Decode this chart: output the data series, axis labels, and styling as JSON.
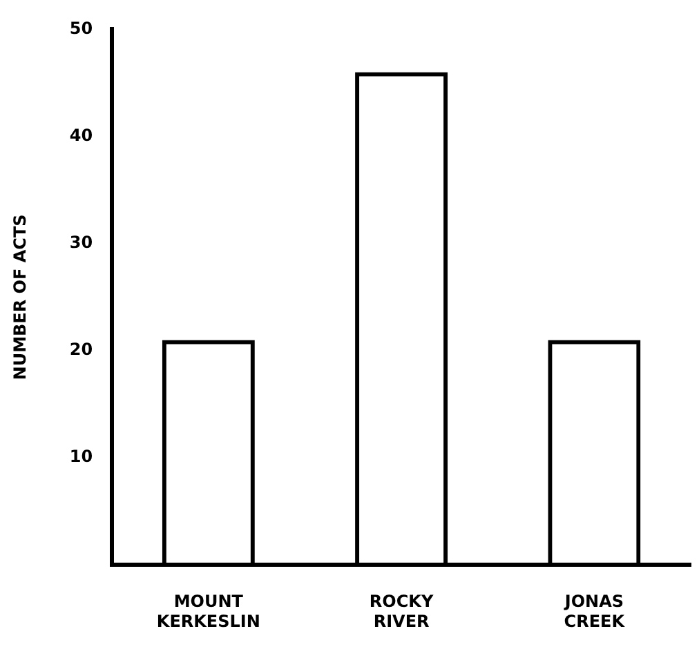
{
  "chart_data": {
    "type": "bar",
    "ylabel": "NUMBER OF ACTS",
    "categories": [
      "MOUNT KERKESLIN",
      "ROCKY RIVER",
      "JONAS CREEK"
    ],
    "values": [
      21,
      46,
      21
    ],
    "color": "#000000",
    "ylim": [
      0,
      50
    ],
    "yticks": [
      10,
      20,
      30,
      40,
      50
    ],
    "grid": false,
    "legend": false
  }
}
